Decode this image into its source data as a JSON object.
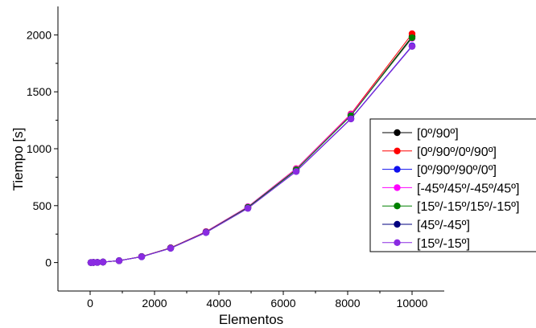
{
  "chart_data": {
    "type": "line",
    "title": "",
    "xlabel": "Elementos",
    "ylabel": "Tiempo [s]",
    "xlim": [
      -1000,
      11000
    ],
    "ylim": [
      -250,
      2250
    ],
    "x_ticks": [
      0,
      2000,
      4000,
      6000,
      8000,
      10000
    ],
    "y_ticks": [
      0,
      500,
      1000,
      1500,
      2000
    ],
    "grid": false,
    "legend_position": "right",
    "x": [
      25,
      100,
      225,
      400,
      900,
      1600,
      2500,
      3600,
      4900,
      6400,
      8100,
      10000
    ],
    "series": [
      {
        "name": "[0º/90º]",
        "color": "#000000",
        "values": [
          0.1,
          0.5,
          1.5,
          4,
          16,
          52,
          128,
          268,
          485,
          815,
          1295,
          1985
        ]
      },
      {
        "name": "[0º/90º/0º/90º]",
        "color": "#ff0000",
        "values": [
          0.1,
          0.5,
          1.5,
          4,
          16,
          53,
          130,
          272,
          490,
          825,
          1305,
          2010
        ]
      },
      {
        "name": "[0º/90º/90º/0º]",
        "color": "#1010ee",
        "values": [
          0.1,
          0.5,
          1.5,
          4,
          16,
          51,
          126,
          264,
          478,
          802,
          1265,
          1905
        ]
      },
      {
        "name": "[-45º/45º/-45º/45º]",
        "color": "#ff00ff",
        "values": [
          0.1,
          0.5,
          1.5,
          4,
          16,
          53,
          129,
          271,
          490,
          822,
          1300,
          1970
        ]
      },
      {
        "name": "[15º/-15º/15º/-15º]",
        "color": "#008000",
        "values": [
          0.1,
          0.5,
          1.5,
          4,
          16,
          52,
          128,
          268,
          485,
          815,
          1290,
          1975
        ]
      },
      {
        "name": "[45º/-45º]",
        "color": "#00007f",
        "values": [
          0.1,
          0.5,
          1.5,
          4,
          16,
          51,
          126,
          264,
          477,
          800,
          1262,
          1900
        ]
      },
      {
        "name": "[15º/-15º]",
        "color": "#8a2be2",
        "values": [
          0.1,
          0.5,
          1.5,
          4,
          16,
          51,
          126,
          264,
          477,
          800,
          1262,
          1900
        ]
      }
    ]
  }
}
